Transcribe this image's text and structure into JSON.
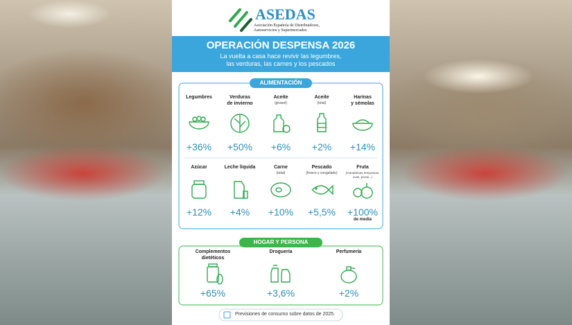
{
  "header": {
    "logo": "ASEDAS",
    "org_lines": [
      "Asociación Española de Distribuidores,",
      "Autoservicios y Supermercados"
    ]
  },
  "banner": {
    "title": "OPERACIÓN DESPENSA 2026",
    "subtitle_lines": [
      "La vuelta a casa hace revivir las legumbres,",
      "las verduras, las carnes y los pescados"
    ]
  },
  "sections": [
    {
      "title": "ALIMENTACIÓN",
      "items": [
        {
          "label": [
            "Legumbres"
          ],
          "value": "+36%"
        },
        {
          "label": [
            "Verduras",
            "de invierno"
          ],
          "value": "+50%"
        },
        {
          "label": [
            "Aceite",
            "(girasol)"
          ],
          "value": "+6%"
        },
        {
          "label": [
            "Aceite",
            "(total)"
          ],
          "value": "+2%"
        },
        {
          "label": [
            "Harinas",
            "y sémolas"
          ],
          "value": "+14%"
        },
        {
          "label": [
            "Azúcar"
          ],
          "value": "+12%"
        },
        {
          "label": [
            "Leche líquida"
          ],
          "value": "+4%"
        },
        {
          "label": [
            "Carne",
            "(total)"
          ],
          "value": "+10%"
        },
        {
          "label": [
            "Pescado",
            "(fresco y congelado)"
          ],
          "value": "+5,5%"
        },
        {
          "label": [
            "Fruta",
            "(mandarinas tempranas,",
            "uvas, peras...)"
          ],
          "value": "+100%",
          "note": "de media"
        }
      ]
    },
    {
      "title": "HOGAR Y PERSONA",
      "items": [
        {
          "label": [
            "Complementos",
            "dietéticos"
          ],
          "value": "+65%"
        },
        {
          "label": [
            "Droguería"
          ],
          "value": "+3,6%"
        },
        {
          "label": [
            "Perfumería"
          ],
          "value": "+2%"
        }
      ]
    }
  ],
  "footer": "Previsiones de consumo sobre datos de 2025."
}
